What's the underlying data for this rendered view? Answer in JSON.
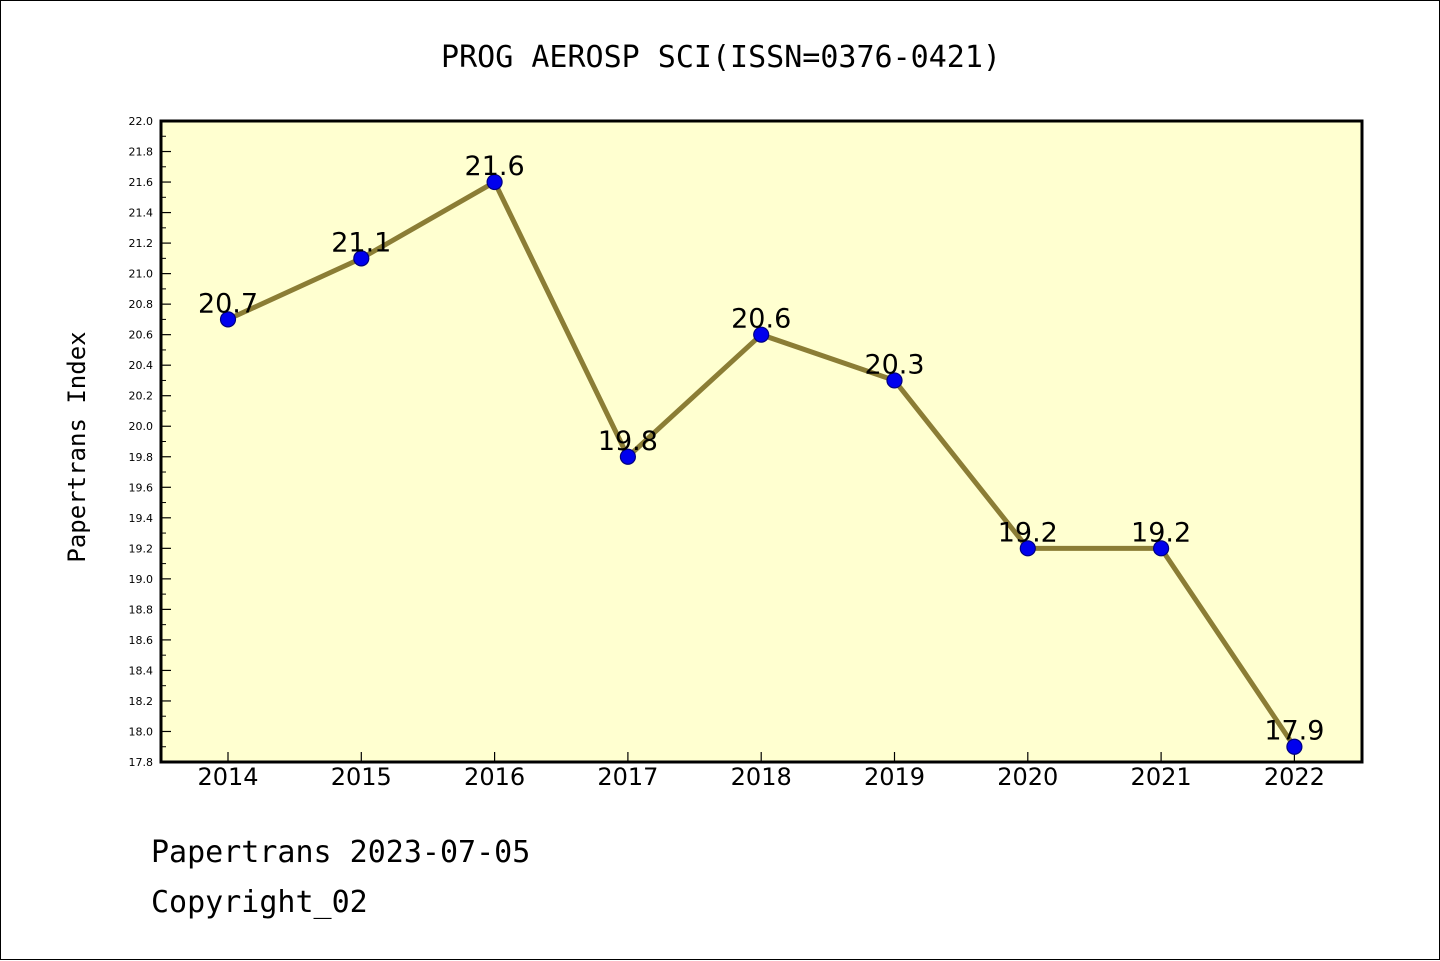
{
  "chart_data": {
    "type": "line",
    "title": "PROG AEROSP SCI(ISSN=0376-0421)",
    "ylabel": "Papertrans Index",
    "xlabel": "",
    "x": [
      "2014",
      "2015",
      "2016",
      "2017",
      "2018",
      "2019",
      "2020",
      "2021",
      "2022"
    ],
    "series": [
      {
        "values": [
          20.7,
          21.1,
          21.6,
          19.8,
          20.6,
          20.3,
          19.2,
          19.2,
          17.9
        ],
        "labels": [
          "20.7",
          "21.1",
          "21.6",
          "19.8",
          "20.6",
          "20.3",
          "19.2",
          "19.2",
          "17.9"
        ]
      }
    ],
    "ylim": [
      17.8,
      22.0
    ],
    "yticks": [
      "17.8",
      "18.0",
      "18.2",
      "18.4",
      "18.6",
      "18.8",
      "19.0",
      "19.2",
      "19.4",
      "19.6",
      "19.8",
      "20.0",
      "20.2",
      "20.4",
      "20.6",
      "20.8",
      "21.0",
      "21.2",
      "21.4",
      "21.6",
      "21.8",
      "22.0"
    ],
    "grid": false,
    "legend": "none",
    "colors": {
      "plot_background": "#ffffd0",
      "line": "#8b7d35",
      "marker": "#0000ee",
      "marker_edge": "#000080"
    }
  },
  "footer": {
    "line1": "Papertrans 2023-07-05",
    "line2": "Copyright_02"
  }
}
